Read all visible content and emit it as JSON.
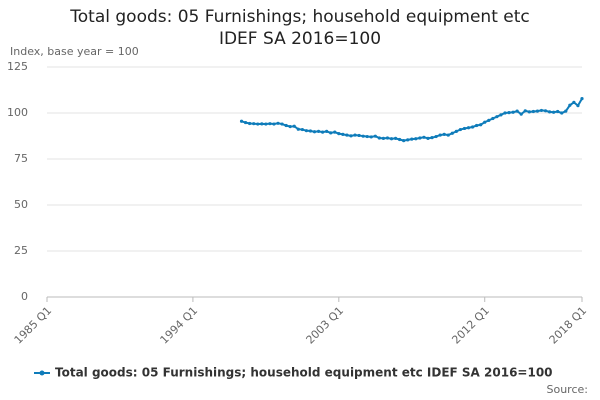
{
  "chart_data": {
    "type": "line",
    "title": "Total goods: 05 Furnishings; household equipment etc IDEF SA 2016=100",
    "y_label": "Index, base year = 100",
    "source": "Source:",
    "categories": [
      "1985 Q1",
      null,
      null,
      null,
      null,
      null,
      null,
      null,
      null,
      null,
      null,
      null,
      null,
      null,
      null,
      null,
      null,
      null,
      null,
      null,
      null,
      null,
      null,
      null,
      null,
      null,
      null,
      null,
      null,
      null,
      null,
      null,
      null,
      null,
      null,
      null,
      "1994 Q1",
      null,
      null,
      null,
      null,
      null,
      null,
      null,
      null,
      null,
      null,
      null,
      null,
      null,
      null,
      null,
      null,
      null,
      null,
      null,
      null,
      null,
      null,
      null,
      null,
      null,
      null,
      null,
      null,
      null,
      null,
      null,
      null,
      null,
      null,
      null,
      "2003 Q1",
      null,
      null,
      null,
      null,
      null,
      null,
      null,
      null,
      null,
      null,
      null,
      null,
      null,
      null,
      null,
      null,
      null,
      null,
      null,
      null,
      null,
      null,
      null,
      null,
      null,
      null,
      null,
      null,
      null,
      null,
      null,
      null,
      null,
      null,
      null,
      "2012 Q1",
      null,
      null,
      null,
      null,
      null,
      null,
      null,
      null,
      null,
      null,
      null,
      null,
      null,
      null,
      null,
      null,
      null,
      null,
      null,
      null,
      null,
      null,
      null,
      "2018 Q1"
    ],
    "series": [
      {
        "name": "Total goods: 05 Furnishings; household equipment etc IDEF SA 2016=100",
        "color": "#0f7cba",
        "values": [
          null,
          null,
          null,
          null,
          null,
          null,
          null,
          null,
          null,
          null,
          null,
          null,
          null,
          null,
          null,
          null,
          null,
          null,
          null,
          null,
          null,
          null,
          null,
          null,
          null,
          null,
          null,
          null,
          null,
          null,
          null,
          null,
          null,
          null,
          null,
          null,
          null,
          null,
          null,
          null,
          null,
          null,
          null,
          null,
          null,
          null,
          null,
          null,
          95.5,
          94.8,
          94.3,
          94.2,
          94.0,
          94.1,
          94.0,
          94.2,
          94.0,
          94.4,
          94.0,
          93.2,
          92.6,
          92.8,
          91.2,
          91.0,
          90.4,
          90.2,
          89.8,
          90.0,
          89.6,
          90.0,
          89.2,
          89.6,
          88.8,
          88.4,
          88.0,
          87.6,
          88.0,
          87.8,
          87.4,
          87.2,
          87.0,
          87.4,
          86.4,
          86.2,
          86.4,
          86.0,
          86.2,
          85.6,
          85.0,
          85.4,
          85.8,
          86.0,
          86.4,
          86.8,
          86.2,
          86.6,
          87.2,
          88.0,
          88.4,
          88.0,
          89.0,
          90.0,
          91.0,
          91.6,
          92.0,
          92.4,
          93.2,
          93.6,
          95.0,
          96.0,
          97.0,
          98.0,
          99.0,
          100.0,
          100.2,
          100.4,
          101.0,
          99.4,
          101.2,
          100.6,
          100.8,
          101.0,
          101.4,
          101.2,
          100.6,
          100.4,
          100.8,
          100.0,
          101.0,
          104.2,
          105.8,
          104.0,
          107.8
        ]
      }
    ],
    "ylim": [
      0,
      125
    ],
    "yticks": [
      0,
      25,
      50,
      75,
      100,
      125
    ],
    "grid": true
  }
}
